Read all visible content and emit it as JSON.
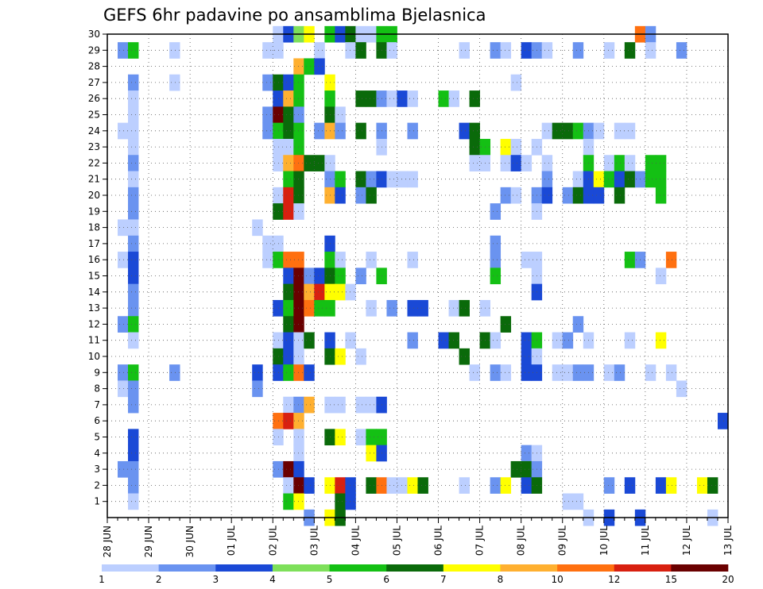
{
  "chart_data": {
    "type": "heatmap",
    "title": "GEFS 6hr padavine po ansamblima Bjelasnica",
    "xlabel": "",
    "ylabel": "",
    "x_tick_labels": [
      "28 JUN",
      "29 JUN",
      "30 JUN",
      "01 JUL",
      "02 JUL",
      "03 JUL",
      "04 JUL",
      "05 JUL",
      "06 JUL",
      "07 JUL",
      "08 JUL",
      "09 JUL",
      "10 JUL",
      "11 JUL",
      "12 JUL",
      "13 JUL"
    ],
    "x_steps_per_day": 4,
    "x_range_steps": [
      0,
      60
    ],
    "y_tick_labels": [
      "1",
      "2",
      "3",
      "4",
      "5",
      "6",
      "7",
      "8",
      "9",
      "10",
      "11",
      "12",
      "13",
      "14",
      "15",
      "16",
      "17",
      "18",
      "19",
      "20",
      "21",
      "22",
      "23",
      "24",
      "25",
      "26",
      "27",
      "28",
      "29",
      "30"
    ],
    "y_range": [
      0,
      30
    ],
    "grid": true,
    "colorbar": {
      "position": "bottom",
      "colors": [
        "#bccfff",
        "#6a93f0",
        "#1a49d6",
        "#7ee05a",
        "#14c014",
        "#0a6a0a",
        "#ffff00",
        "#ffb030",
        "#ff7010",
        "#d82010",
        "#6a0000"
      ],
      "tick_labels": [
        "1",
        "2",
        "3",
        "4",
        "5",
        "6",
        "7",
        "8",
        "10",
        "12",
        "15",
        "20"
      ]
    },
    "cells_format": "[member, time_step_index_from_28_JUN_00z, color_class_index]",
    "cells": [
      [
        30,
        16,
        0
      ],
      [
        30,
        17,
        2
      ],
      [
        30,
        18,
        3
      ],
      [
        30,
        19,
        6
      ],
      [
        30,
        21,
        4
      ],
      [
        30,
        22,
        2
      ],
      [
        30,
        23,
        5
      ],
      [
        30,
        24,
        0
      ],
      [
        30,
        25,
        0
      ],
      [
        30,
        26,
        4
      ],
      [
        30,
        27,
        4
      ],
      [
        30,
        51,
        8
      ],
      [
        30,
        52,
        1
      ],
      [
        29,
        1,
        1
      ],
      [
        29,
        2,
        4
      ],
      [
        29,
        6,
        0
      ],
      [
        29,
        15,
        0
      ],
      [
        29,
        16,
        0
      ],
      [
        29,
        20,
        0
      ],
      [
        29,
        23,
        0
      ],
      [
        29,
        24,
        5
      ],
      [
        29,
        26,
        5
      ],
      [
        29,
        27,
        0
      ],
      [
        29,
        34,
        0
      ],
      [
        29,
        37,
        1
      ],
      [
        29,
        38,
        0
      ],
      [
        29,
        40,
        2
      ],
      [
        29,
        41,
        1
      ],
      [
        29,
        42,
        0
      ],
      [
        29,
        45,
        1
      ],
      [
        29,
        48,
        0
      ],
      [
        29,
        50,
        5
      ],
      [
        29,
        52,
        0
      ],
      [
        29,
        55,
        1
      ],
      [
        28,
        18,
        7
      ],
      [
        28,
        19,
        4
      ],
      [
        28,
        20,
        2
      ],
      [
        27,
        2,
        1
      ],
      [
        27,
        6,
        0
      ],
      [
        27,
        15,
        1
      ],
      [
        27,
        16,
        5
      ],
      [
        27,
        17,
        2
      ],
      [
        27,
        18,
        4
      ],
      [
        27,
        21,
        6
      ],
      [
        27,
        39,
        0
      ],
      [
        26,
        2,
        0
      ],
      [
        26,
        16,
        2
      ],
      [
        26,
        17,
        7
      ],
      [
        26,
        18,
        4
      ],
      [
        26,
        21,
        4
      ],
      [
        26,
        24,
        5
      ],
      [
        26,
        25,
        5
      ],
      [
        26,
        26,
        1
      ],
      [
        26,
        27,
        0
      ],
      [
        26,
        28,
        2
      ],
      [
        26,
        29,
        0
      ],
      [
        26,
        32,
        4
      ],
      [
        26,
        33,
        0
      ],
      [
        26,
        35,
        5
      ],
      [
        25,
        2,
        0
      ],
      [
        25,
        15,
        1
      ],
      [
        25,
        16,
        10
      ],
      [
        25,
        17,
        5
      ],
      [
        25,
        18,
        1
      ],
      [
        25,
        21,
        5
      ],
      [
        25,
        22,
        0
      ],
      [
        24,
        1,
        0
      ],
      [
        24,
        2,
        0
      ],
      [
        24,
        15,
        1
      ],
      [
        24,
        16,
        4
      ],
      [
        24,
        17,
        5
      ],
      [
        24,
        18,
        4
      ],
      [
        24,
        20,
        1
      ],
      [
        24,
        21,
        7
      ],
      [
        24,
        22,
        1
      ],
      [
        24,
        24,
        5
      ],
      [
        24,
        26,
        1
      ],
      [
        24,
        29,
        1
      ],
      [
        24,
        34,
        2
      ],
      [
        24,
        35,
        5
      ],
      [
        24,
        42,
        0
      ],
      [
        24,
        43,
        5
      ],
      [
        24,
        44,
        5
      ],
      [
        24,
        45,
        4
      ],
      [
        24,
        46,
        1
      ],
      [
        24,
        47,
        0
      ],
      [
        24,
        49,
        0
      ],
      [
        24,
        50,
        0
      ],
      [
        23,
        2,
        0
      ],
      [
        23,
        16,
        0
      ],
      [
        23,
        17,
        0
      ],
      [
        23,
        18,
        4
      ],
      [
        23,
        26,
        0
      ],
      [
        23,
        35,
        5
      ],
      [
        23,
        36,
        4
      ],
      [
        23,
        38,
        6
      ],
      [
        23,
        39,
        0
      ],
      [
        23,
        41,
        0
      ],
      [
        23,
        46,
        0
      ],
      [
        22,
        2,
        1
      ],
      [
        22,
        16,
        0
      ],
      [
        22,
        17,
        7
      ],
      [
        22,
        18,
        8
      ],
      [
        22,
        19,
        5
      ],
      [
        22,
        20,
        5
      ],
      [
        22,
        21,
        0
      ],
      [
        22,
        35,
        0
      ],
      [
        22,
        36,
        0
      ],
      [
        22,
        38,
        0
      ],
      [
        22,
        39,
        2
      ],
      [
        22,
        40,
        0
      ],
      [
        22,
        42,
        0
      ],
      [
        22,
        46,
        4
      ],
      [
        22,
        48,
        0
      ],
      [
        22,
        49,
        4
      ],
      [
        22,
        50,
        0
      ],
      [
        22,
        52,
        4
      ],
      [
        22,
        53,
        4
      ],
      [
        21,
        2,
        0
      ],
      [
        21,
        17,
        4
      ],
      [
        21,
        18,
        5
      ],
      [
        21,
        21,
        1
      ],
      [
        21,
        22,
        4
      ],
      [
        21,
        24,
        5
      ],
      [
        21,
        25,
        1
      ],
      [
        21,
        26,
        2
      ],
      [
        21,
        27,
        0
      ],
      [
        21,
        28,
        0
      ],
      [
        21,
        29,
        0
      ],
      [
        21,
        42,
        1
      ],
      [
        21,
        45,
        0
      ],
      [
        21,
        46,
        2
      ],
      [
        21,
        47,
        6
      ],
      [
        21,
        48,
        4
      ],
      [
        21,
        49,
        2
      ],
      [
        21,
        50,
        5
      ],
      [
        21,
        51,
        1
      ],
      [
        21,
        52,
        4
      ],
      [
        21,
        53,
        4
      ],
      [
        20,
        2,
        1
      ],
      [
        20,
        16,
        0
      ],
      [
        20,
        17,
        9
      ],
      [
        20,
        18,
        5
      ],
      [
        20,
        21,
        7
      ],
      [
        20,
        22,
        2
      ],
      [
        20,
        24,
        1
      ],
      [
        20,
        25,
        5
      ],
      [
        20,
        38,
        1
      ],
      [
        20,
        39,
        0
      ],
      [
        20,
        41,
        1
      ],
      [
        20,
        42,
        2
      ],
      [
        20,
        44,
        1
      ],
      [
        20,
        45,
        5
      ],
      [
        20,
        46,
        2
      ],
      [
        20,
        47,
        2
      ],
      [
        20,
        49,
        5
      ],
      [
        20,
        53,
        4
      ],
      [
        19,
        2,
        1
      ],
      [
        19,
        16,
        5
      ],
      [
        19,
        17,
        9
      ],
      [
        19,
        18,
        0
      ],
      [
        19,
        37,
        1
      ],
      [
        19,
        41,
        0
      ],
      [
        18,
        1,
        0
      ],
      [
        18,
        2,
        0
      ],
      [
        18,
        14,
        0
      ],
      [
        17,
        2,
        1
      ],
      [
        17,
        15,
        0
      ],
      [
        17,
        16,
        0
      ],
      [
        17,
        21,
        2
      ],
      [
        17,
        37,
        1
      ],
      [
        16,
        1,
        0
      ],
      [
        16,
        2,
        2
      ],
      [
        16,
        15,
        0
      ],
      [
        16,
        16,
        4
      ],
      [
        16,
        17,
        8
      ],
      [
        16,
        18,
        8
      ],
      [
        16,
        21,
        4
      ],
      [
        16,
        22,
        0
      ],
      [
        16,
        25,
        0
      ],
      [
        16,
        29,
        0
      ],
      [
        16,
        37,
        1
      ],
      [
        16,
        40,
        0
      ],
      [
        16,
        41,
        0
      ],
      [
        16,
        50,
        4
      ],
      [
        16,
        51,
        1
      ],
      [
        16,
        54,
        8
      ],
      [
        15,
        2,
        2
      ],
      [
        15,
        17,
        2
      ],
      [
        15,
        18,
        10
      ],
      [
        15,
        19,
        1
      ],
      [
        15,
        20,
        2
      ],
      [
        15,
        21,
        5
      ],
      [
        15,
        22,
        4
      ],
      [
        15,
        24,
        1
      ],
      [
        15,
        26,
        4
      ],
      [
        15,
        37,
        4
      ],
      [
        15,
        41,
        0
      ],
      [
        15,
        53,
        0
      ],
      [
        14,
        2,
        1
      ],
      [
        14,
        17,
        5
      ],
      [
        14,
        18,
        10
      ],
      [
        14,
        19,
        7
      ],
      [
        14,
        20,
        9
      ],
      [
        14,
        21,
        6
      ],
      [
        14,
        22,
        6
      ],
      [
        14,
        23,
        0
      ],
      [
        14,
        41,
        2
      ],
      [
        13,
        2,
        1
      ],
      [
        13,
        16,
        2
      ],
      [
        13,
        17,
        4
      ],
      [
        13,
        18,
        10
      ],
      [
        13,
        19,
        8
      ],
      [
        13,
        20,
        4
      ],
      [
        13,
        21,
        4
      ],
      [
        13,
        25,
        0
      ],
      [
        13,
        27,
        1
      ],
      [
        13,
        29,
        2
      ],
      [
        13,
        30,
        2
      ],
      [
        13,
        33,
        0
      ],
      [
        13,
        34,
        5
      ],
      [
        13,
        36,
        0
      ],
      [
        12,
        1,
        1
      ],
      [
        12,
        2,
        4
      ],
      [
        12,
        17,
        5
      ],
      [
        12,
        18,
        10
      ],
      [
        12,
        38,
        5
      ],
      [
        12,
        45,
        1
      ],
      [
        11,
        2,
        0
      ],
      [
        11,
        16,
        0
      ],
      [
        11,
        17,
        2
      ],
      [
        11,
        18,
        0
      ],
      [
        11,
        19,
        5
      ],
      [
        11,
        21,
        2
      ],
      [
        11,
        23,
        0
      ],
      [
        11,
        29,
        1
      ],
      [
        11,
        32,
        2
      ],
      [
        11,
        33,
        5
      ],
      [
        11,
        36,
        5
      ],
      [
        11,
        37,
        0
      ],
      [
        11,
        40,
        2
      ],
      [
        11,
        41,
        4
      ],
      [
        11,
        43,
        0
      ],
      [
        11,
        44,
        1
      ],
      [
        11,
        46,
        0
      ],
      [
        11,
        50,
        0
      ],
      [
        11,
        53,
        6
      ],
      [
        10,
        16,
        5
      ],
      [
        10,
        17,
        2
      ],
      [
        10,
        18,
        0
      ],
      [
        10,
        21,
        5
      ],
      [
        10,
        22,
        6
      ],
      [
        10,
        24,
        0
      ],
      [
        10,
        34,
        5
      ],
      [
        10,
        40,
        2
      ],
      [
        10,
        41,
        0
      ],
      [
        9,
        1,
        1
      ],
      [
        9,
        2,
        4
      ],
      [
        9,
        6,
        1
      ],
      [
        9,
        14,
        2
      ],
      [
        9,
        16,
        2
      ],
      [
        9,
        17,
        4
      ],
      [
        9,
        18,
        8
      ],
      [
        9,
        19,
        2
      ],
      [
        9,
        35,
        0
      ],
      [
        9,
        37,
        1
      ],
      [
        9,
        38,
        0
      ],
      [
        9,
        40,
        2
      ],
      [
        9,
        41,
        2
      ],
      [
        9,
        43,
        0
      ],
      [
        9,
        44,
        0
      ],
      [
        9,
        45,
        1
      ],
      [
        9,
        46,
        1
      ],
      [
        9,
        48,
        0
      ],
      [
        9,
        49,
        1
      ],
      [
        9,
        52,
        0
      ],
      [
        9,
        54,
        0
      ],
      [
        8,
        1,
        0
      ],
      [
        8,
        2,
        1
      ],
      [
        8,
        14,
        1
      ],
      [
        8,
        55,
        0
      ],
      [
        7,
        2,
        1
      ],
      [
        7,
        17,
        0
      ],
      [
        7,
        18,
        1
      ],
      [
        7,
        19,
        7
      ],
      [
        7,
        21,
        0
      ],
      [
        7,
        22,
        0
      ],
      [
        7,
        24,
        0
      ],
      [
        7,
        25,
        0
      ],
      [
        7,
        26,
        2
      ],
      [
        6,
        16,
        8
      ],
      [
        6,
        17,
        9
      ],
      [
        6,
        18,
        7
      ],
      [
        6,
        59,
        2
      ],
      [
        5,
        2,
        2
      ],
      [
        5,
        16,
        0
      ],
      [
        5,
        18,
        0
      ],
      [
        5,
        21,
        5
      ],
      [
        5,
        22,
        6
      ],
      [
        5,
        24,
        0
      ],
      [
        5,
        25,
        4
      ],
      [
        5,
        26,
        4
      ],
      [
        4,
        2,
        2
      ],
      [
        4,
        18,
        0
      ],
      [
        4,
        25,
        6
      ],
      [
        4,
        26,
        2
      ],
      [
        4,
        40,
        1
      ],
      [
        4,
        41,
        0
      ],
      [
        3,
        1,
        1
      ],
      [
        3,
        2,
        1
      ],
      [
        3,
        16,
        1
      ],
      [
        3,
        17,
        10
      ],
      [
        3,
        18,
        2
      ],
      [
        3,
        39,
        5
      ],
      [
        3,
        40,
        5
      ],
      [
        3,
        41,
        1
      ],
      [
        2,
        2,
        1
      ],
      [
        2,
        17,
        0
      ],
      [
        2,
        18,
        10
      ],
      [
        2,
        19,
        2
      ],
      [
        2,
        21,
        6
      ],
      [
        2,
        22,
        9
      ],
      [
        2,
        23,
        2
      ],
      [
        2,
        25,
        5
      ],
      [
        2,
        26,
        8
      ],
      [
        2,
        27,
        0
      ],
      [
        2,
        28,
        0
      ],
      [
        2,
        29,
        6
      ],
      [
        2,
        30,
        5
      ],
      [
        2,
        34,
        0
      ],
      [
        2,
        37,
        1
      ],
      [
        2,
        38,
        6
      ],
      [
        2,
        40,
        2
      ],
      [
        2,
        41,
        5
      ],
      [
        2,
        48,
        1
      ],
      [
        2,
        50,
        2
      ],
      [
        2,
        53,
        2
      ],
      [
        2,
        54,
        6
      ],
      [
        2,
        57,
        6
      ],
      [
        2,
        58,
        5
      ],
      [
        1,
        2,
        0
      ],
      [
        1,
        17,
        4
      ],
      [
        1,
        18,
        6
      ],
      [
        1,
        22,
        5
      ],
      [
        1,
        23,
        2
      ],
      [
        1,
        44,
        0
      ],
      [
        1,
        45,
        0
      ],
      [
        0,
        19,
        1
      ],
      [
        0,
        21,
        6
      ],
      [
        0,
        22,
        5
      ],
      [
        0,
        46,
        0
      ],
      [
        0,
        48,
        2
      ],
      [
        0,
        51,
        2
      ],
      [
        0,
        58,
        0
      ]
    ]
  }
}
